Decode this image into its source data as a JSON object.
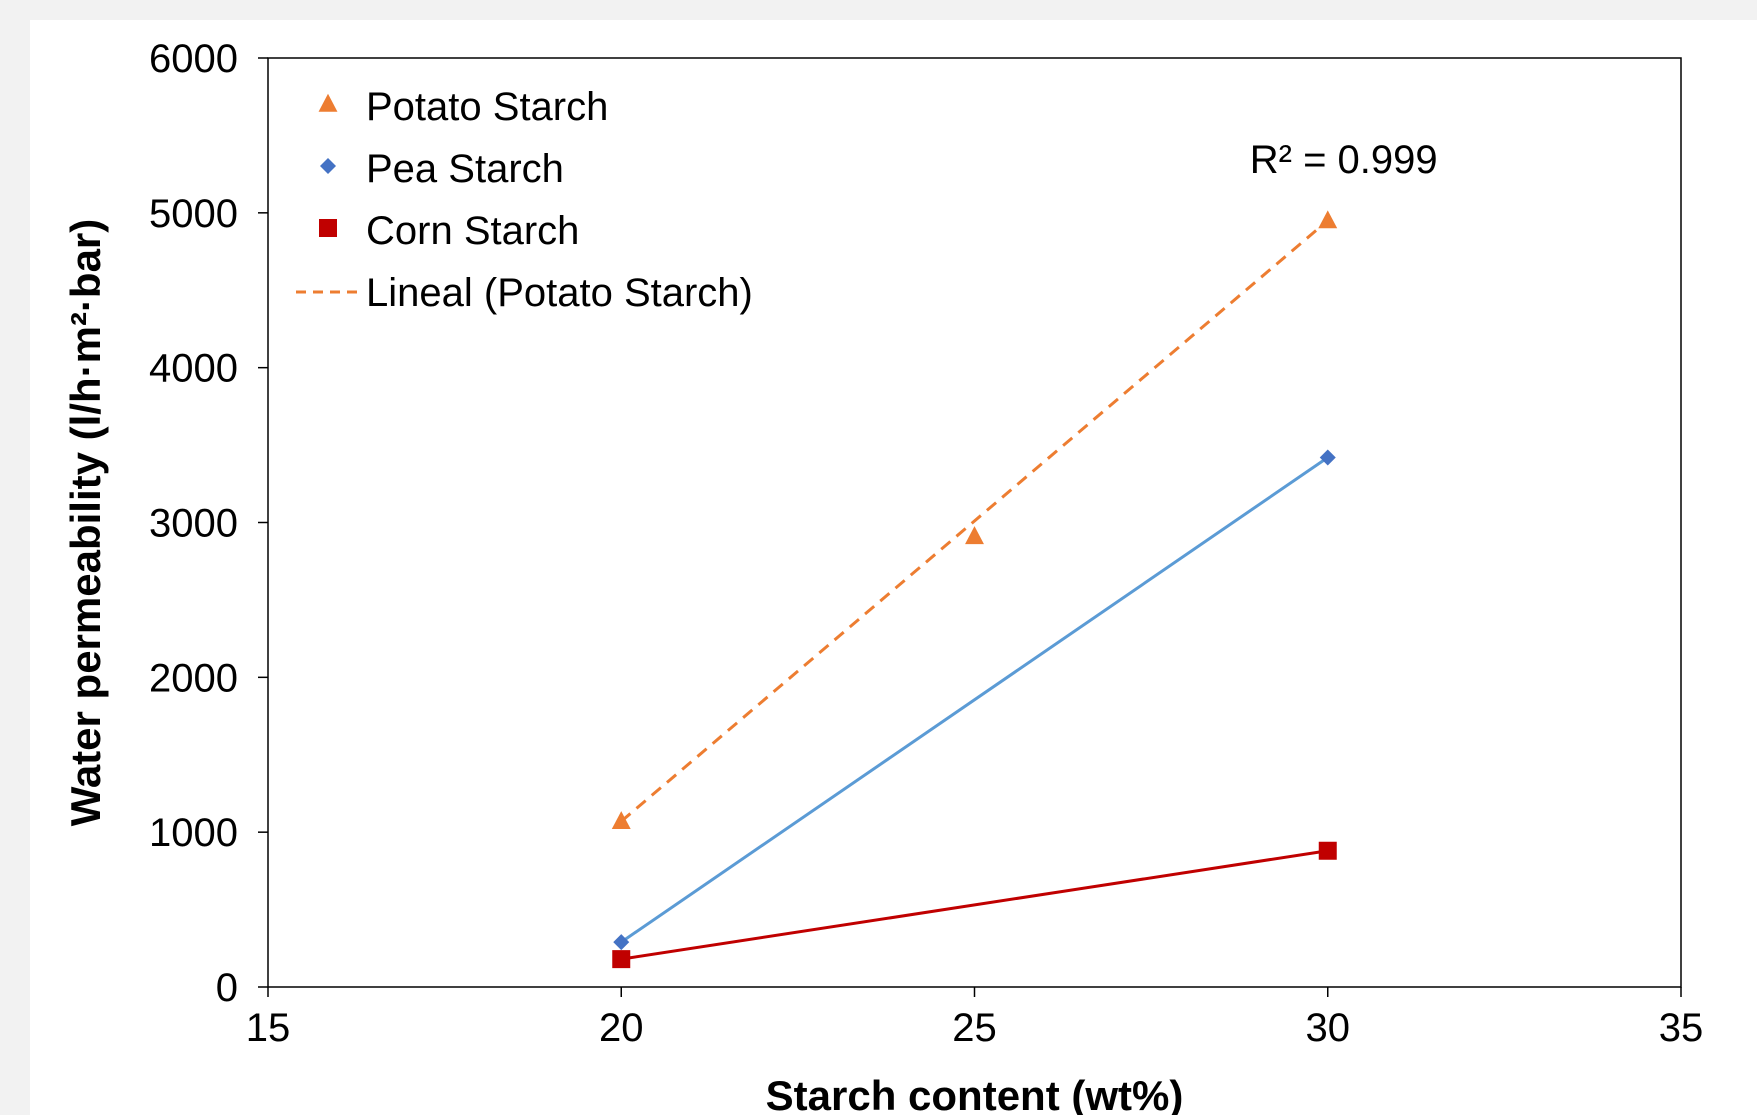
{
  "chart_data": {
    "type": "scatter",
    "xlabel": "Starch content (wt%)",
    "ylabel": "Water permeability (l/h·m²·bar)",
    "xlim": [
      15,
      35
    ],
    "ylim": [
      0,
      6000
    ],
    "xticks": [
      15,
      20,
      25,
      30,
      35
    ],
    "yticks": [
      0,
      1000,
      2000,
      3000,
      4000,
      5000,
      6000
    ],
    "grid": false,
    "legend_position": "top-left",
    "series": [
      {
        "name": "Potato Starch",
        "marker": "triangle",
        "color": "#ED7D31",
        "x": [
          20,
          25,
          30
        ],
        "y": [
          1070,
          2910,
          4950
        ],
        "line": "none"
      },
      {
        "name": "Pea Starch",
        "marker": "diamond",
        "color": "#4472C4",
        "line_color": "#5B9BD5",
        "x": [
          20,
          30
        ],
        "y": [
          290,
          3420
        ],
        "line": "solid"
      },
      {
        "name": "Corn Starch",
        "marker": "square",
        "color": "#C00000",
        "x": [
          20,
          30
        ],
        "y": [
          180,
          880
        ],
        "line": "solid"
      }
    ],
    "trendline": {
      "name": "Lineal (Potato Starch)",
      "color": "#ED7D31",
      "style": "dashed",
      "x": [
        20,
        30
      ],
      "y": [
        1070,
        4950
      ]
    },
    "annotations": [
      {
        "text": "R² = 0.999"
      }
    ]
  }
}
